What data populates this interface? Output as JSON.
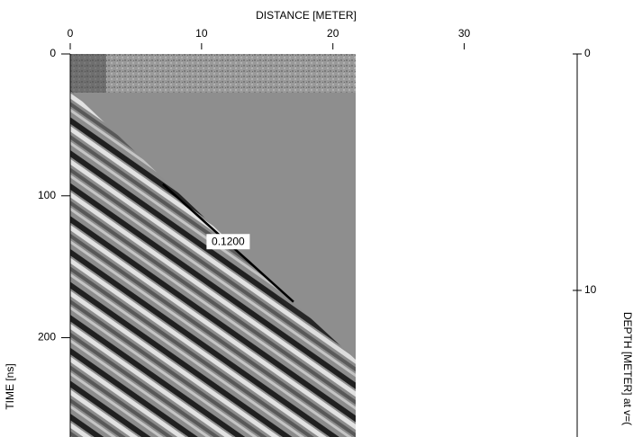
{
  "chart_data": {
    "type": "radargram",
    "xlabel": "DISTANCE [METER]",
    "ylabel": "TIME [ns]",
    "y2label": "DEPTH [METER] at v=(",
    "xlim": [
      0,
      38.6
    ],
    "xticks": [
      0,
      10,
      20,
      30
    ],
    "ylim": [
      0,
      270
    ],
    "yticks": [
      0,
      100,
      200
    ],
    "y2lim": [
      0,
      16.2
    ],
    "y2ticks": [
      0,
      10
    ],
    "annotation": {
      "x": [
        7.05,
        17.0
      ],
      "y": [
        91.8,
        174.7
      ],
      "label": {
        "value": 0.12,
        "label": "0.1200"
      }
    }
  }
}
